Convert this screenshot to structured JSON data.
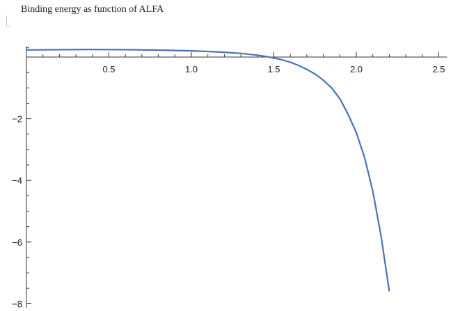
{
  "cell": {
    "title": "Binding energy as function of ALFA"
  },
  "chart_data": {
    "type": "line",
    "title": "Binding energy as function of ALFA",
    "xlabel": "",
    "ylabel": "",
    "xlim": [
      0,
      2.5
    ],
    "ylim": [
      -8,
      0.4
    ],
    "x_ticks": [
      {
        "value": 0.5,
        "label": "0.5"
      },
      {
        "value": 1.0,
        "label": "1.0"
      },
      {
        "value": 1.5,
        "label": "1.5"
      },
      {
        "value": 2.0,
        "label": "2.0"
      },
      {
        "value": 2.5,
        "label": "2.5"
      }
    ],
    "y_ticks": [
      {
        "value": -2,
        "label": "−2"
      },
      {
        "value": -4,
        "label": "−4"
      },
      {
        "value": -6,
        "label": "−6"
      },
      {
        "value": -8,
        "label": "−8"
      }
    ],
    "grid": false,
    "series": [
      {
        "color": "#4a72b8",
        "x": [
          0.0,
          0.2,
          0.4,
          0.6,
          0.8,
          1.0,
          1.1,
          1.2,
          1.3,
          1.4,
          1.45,
          1.5,
          1.55,
          1.6,
          1.65,
          1.7,
          1.75,
          1.8,
          1.85,
          1.9,
          1.95,
          2.0,
          2.05,
          2.1,
          2.15,
          2.2
        ],
        "y": [
          0.23,
          0.24,
          0.245,
          0.24,
          0.225,
          0.2,
          0.18,
          0.155,
          0.12,
          0.06,
          0.02,
          -0.03,
          -0.09,
          -0.17,
          -0.27,
          -0.4,
          -0.55,
          -0.75,
          -1.0,
          -1.35,
          -1.85,
          -2.45,
          -3.25,
          -4.35,
          -5.8,
          -7.6
        ]
      }
    ]
  }
}
